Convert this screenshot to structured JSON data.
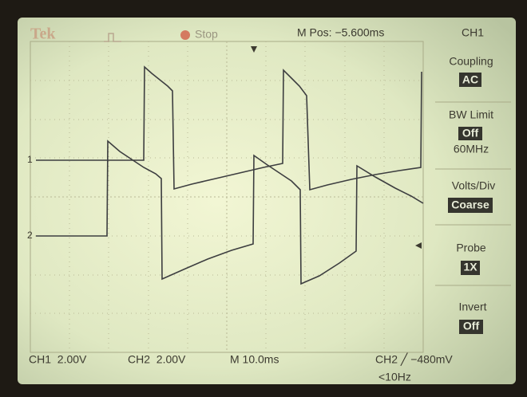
{
  "header": {
    "brand": "Tek",
    "status": "Stop",
    "position": "M Pos: −5.600ms"
  },
  "menu": {
    "title": "CH1",
    "items": [
      {
        "label": "Coupling",
        "value": "AC"
      },
      {
        "label": "BW Limit",
        "value": "Off",
        "note": "60MHz"
      },
      {
        "label": "Volts/Div",
        "value": "Coarse"
      },
      {
        "label": "Probe",
        "value": "1X"
      },
      {
        "label": "Invert",
        "value": "Off"
      }
    ]
  },
  "markers": {
    "ch1": "1",
    "ch2": "2"
  },
  "footer": {
    "ch1_scale": "CH1  2.00V",
    "ch2_scale": "CH2  2.00V",
    "timebase": "M 10.0ms",
    "trigger": "CH2 ╱ −480mV",
    "frequency": "<10Hz"
  }
}
